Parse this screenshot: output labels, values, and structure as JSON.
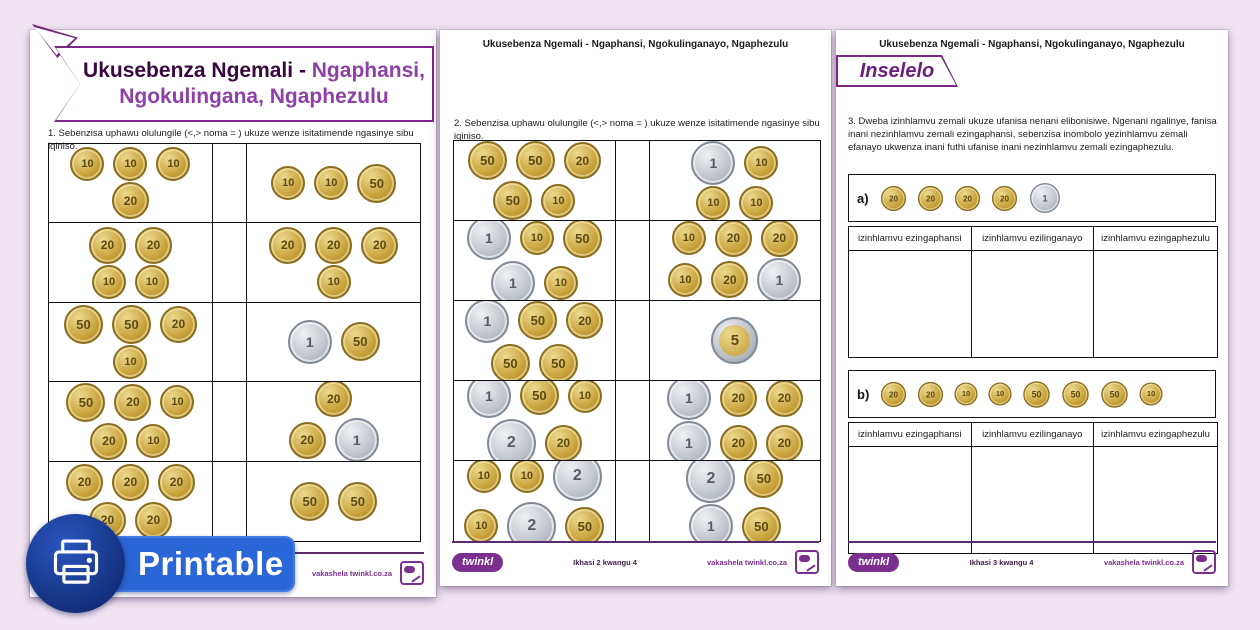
{
  "colors": {
    "background": "#f0e4f2",
    "accent_purple": "#7a2982",
    "title_dark": "#38083f",
    "title_light": "#8f3fa8",
    "badge_blue": "#2b66d9",
    "badge_circle_blue": "#16327e",
    "coin_gold": "#c7a23a",
    "coin_silver": "#bfc4cb"
  },
  "badge": {
    "label": "Printable"
  },
  "pages": {
    "p1": {
      "title_bold": "Ukusebenza Ngemali - ",
      "title_light": "Ngaphansi,",
      "title_line2": "Ngokulingana, Ngaphezulu",
      "instruction": "1. Sebenzisa uphawu olulungile (<,> noma = ) ukuze wenze isitatimende ngasinye sibu iqiniso.",
      "rows": [
        {
          "left": [
            [
              "10",
              "10",
              "10"
            ],
            [
              "20"
            ]
          ],
          "right": [
            [
              "10",
              "10",
              "50"
            ]
          ]
        },
        {
          "left": [
            [
              "20",
              "20"
            ],
            [
              "10",
              "10"
            ]
          ],
          "right": [
            [
              "20",
              "20",
              "20"
            ],
            [
              "10"
            ]
          ]
        },
        {
          "left": [
            [
              "50",
              "50",
              "20"
            ],
            [
              "10"
            ]
          ],
          "right": [
            [
              "R1",
              "50"
            ]
          ]
        },
        {
          "left": [
            [
              "50",
              "20",
              "10"
            ],
            [
              "20",
              "10"
            ]
          ],
          "right": [
            [
              "20"
            ],
            [
              "20",
              "R1"
            ]
          ]
        },
        {
          "left": [
            [
              "20",
              "20",
              "20"
            ],
            [
              "20",
              "20"
            ]
          ],
          "right": [
            [
              "50",
              "50"
            ]
          ]
        }
      ],
      "footer_site": "vakashela twinkl.co.za"
    },
    "p2": {
      "header": "Ukusebenza Ngemali - Ngaphansi, Ngokulinganayo, Ngaphezulu",
      "instruction": "2. Sebenzisa uphawu olulungile (<,> noma = ) ukuze wenze isitatimende ngasinye sibu iqiniso.",
      "rows": [
        {
          "left": [
            [
              "50",
              "50",
              "20"
            ],
            [
              "50",
              "10"
            ]
          ],
          "right": [
            [
              "R1",
              "10"
            ],
            [
              "10",
              "10"
            ]
          ]
        },
        {
          "left": [
            [
              "R1",
              "10",
              "50"
            ],
            [
              "R1",
              "10"
            ]
          ],
          "right": [
            [
              "10",
              "20",
              "20"
            ],
            [
              "10",
              "20",
              "R1"
            ]
          ]
        },
        {
          "left": [
            [
              "R1",
              "50",
              "20"
            ],
            [
              "50",
              "50"
            ]
          ],
          "right": [
            [
              "R5"
            ]
          ]
        },
        {
          "left": [
            [
              "R1",
              "50",
              "10"
            ],
            [
              "R2",
              "20"
            ]
          ],
          "right": [
            [
              "R1",
              "20",
              "20"
            ],
            [
              "R1",
              "20",
              "20"
            ]
          ]
        },
        {
          "left": [
            [
              "10",
              "10",
              "R2"
            ],
            [
              "10",
              "R2",
              "50"
            ]
          ],
          "right": [
            [
              "R2",
              "50"
            ],
            [
              "R1",
              "50"
            ]
          ]
        }
      ],
      "footer_logo": "twinkl",
      "footer_page": "Ikhasi 2 kwangu 4",
      "footer_site": "vakashela twinkl.co.za"
    },
    "p3": {
      "header": "Ukusebenza Ngemali - Ngaphansi, Ngokulinganayo, Ngaphezulu",
      "challenge_title": "Inselelo",
      "instruction": "3. Dweba izinhlamvu zemali ukuze ufanisa nenani elibonisiwe. Ngenani ngalinye, fanisa inani nezinhlamvu zemali ezingaphansi, sebenzisa inombolo yezinhlamvu zemali efanayo ukwenza inani futhi ufanise inani nezinhlamvu zemali ezingaphezulu.",
      "sections": [
        {
          "label": "a)",
          "coins": [
            "20",
            "20",
            "20",
            "20",
            "R1"
          ]
        },
        {
          "label": "b)",
          "coins": [
            "20",
            "20",
            "10",
            "10",
            "50",
            "50",
            "50",
            "10"
          ]
        }
      ],
      "table_headers": [
        "izinhlamvu ezingaphansi",
        "izinhlamvu ezilinganayo",
        "izinhlamvu ezingaphezulu"
      ],
      "footer_logo": "twinkl",
      "footer_page": "Ikhasi 3 kwangu 4",
      "footer_site": "vakashela twinkl.co.za"
    }
  }
}
